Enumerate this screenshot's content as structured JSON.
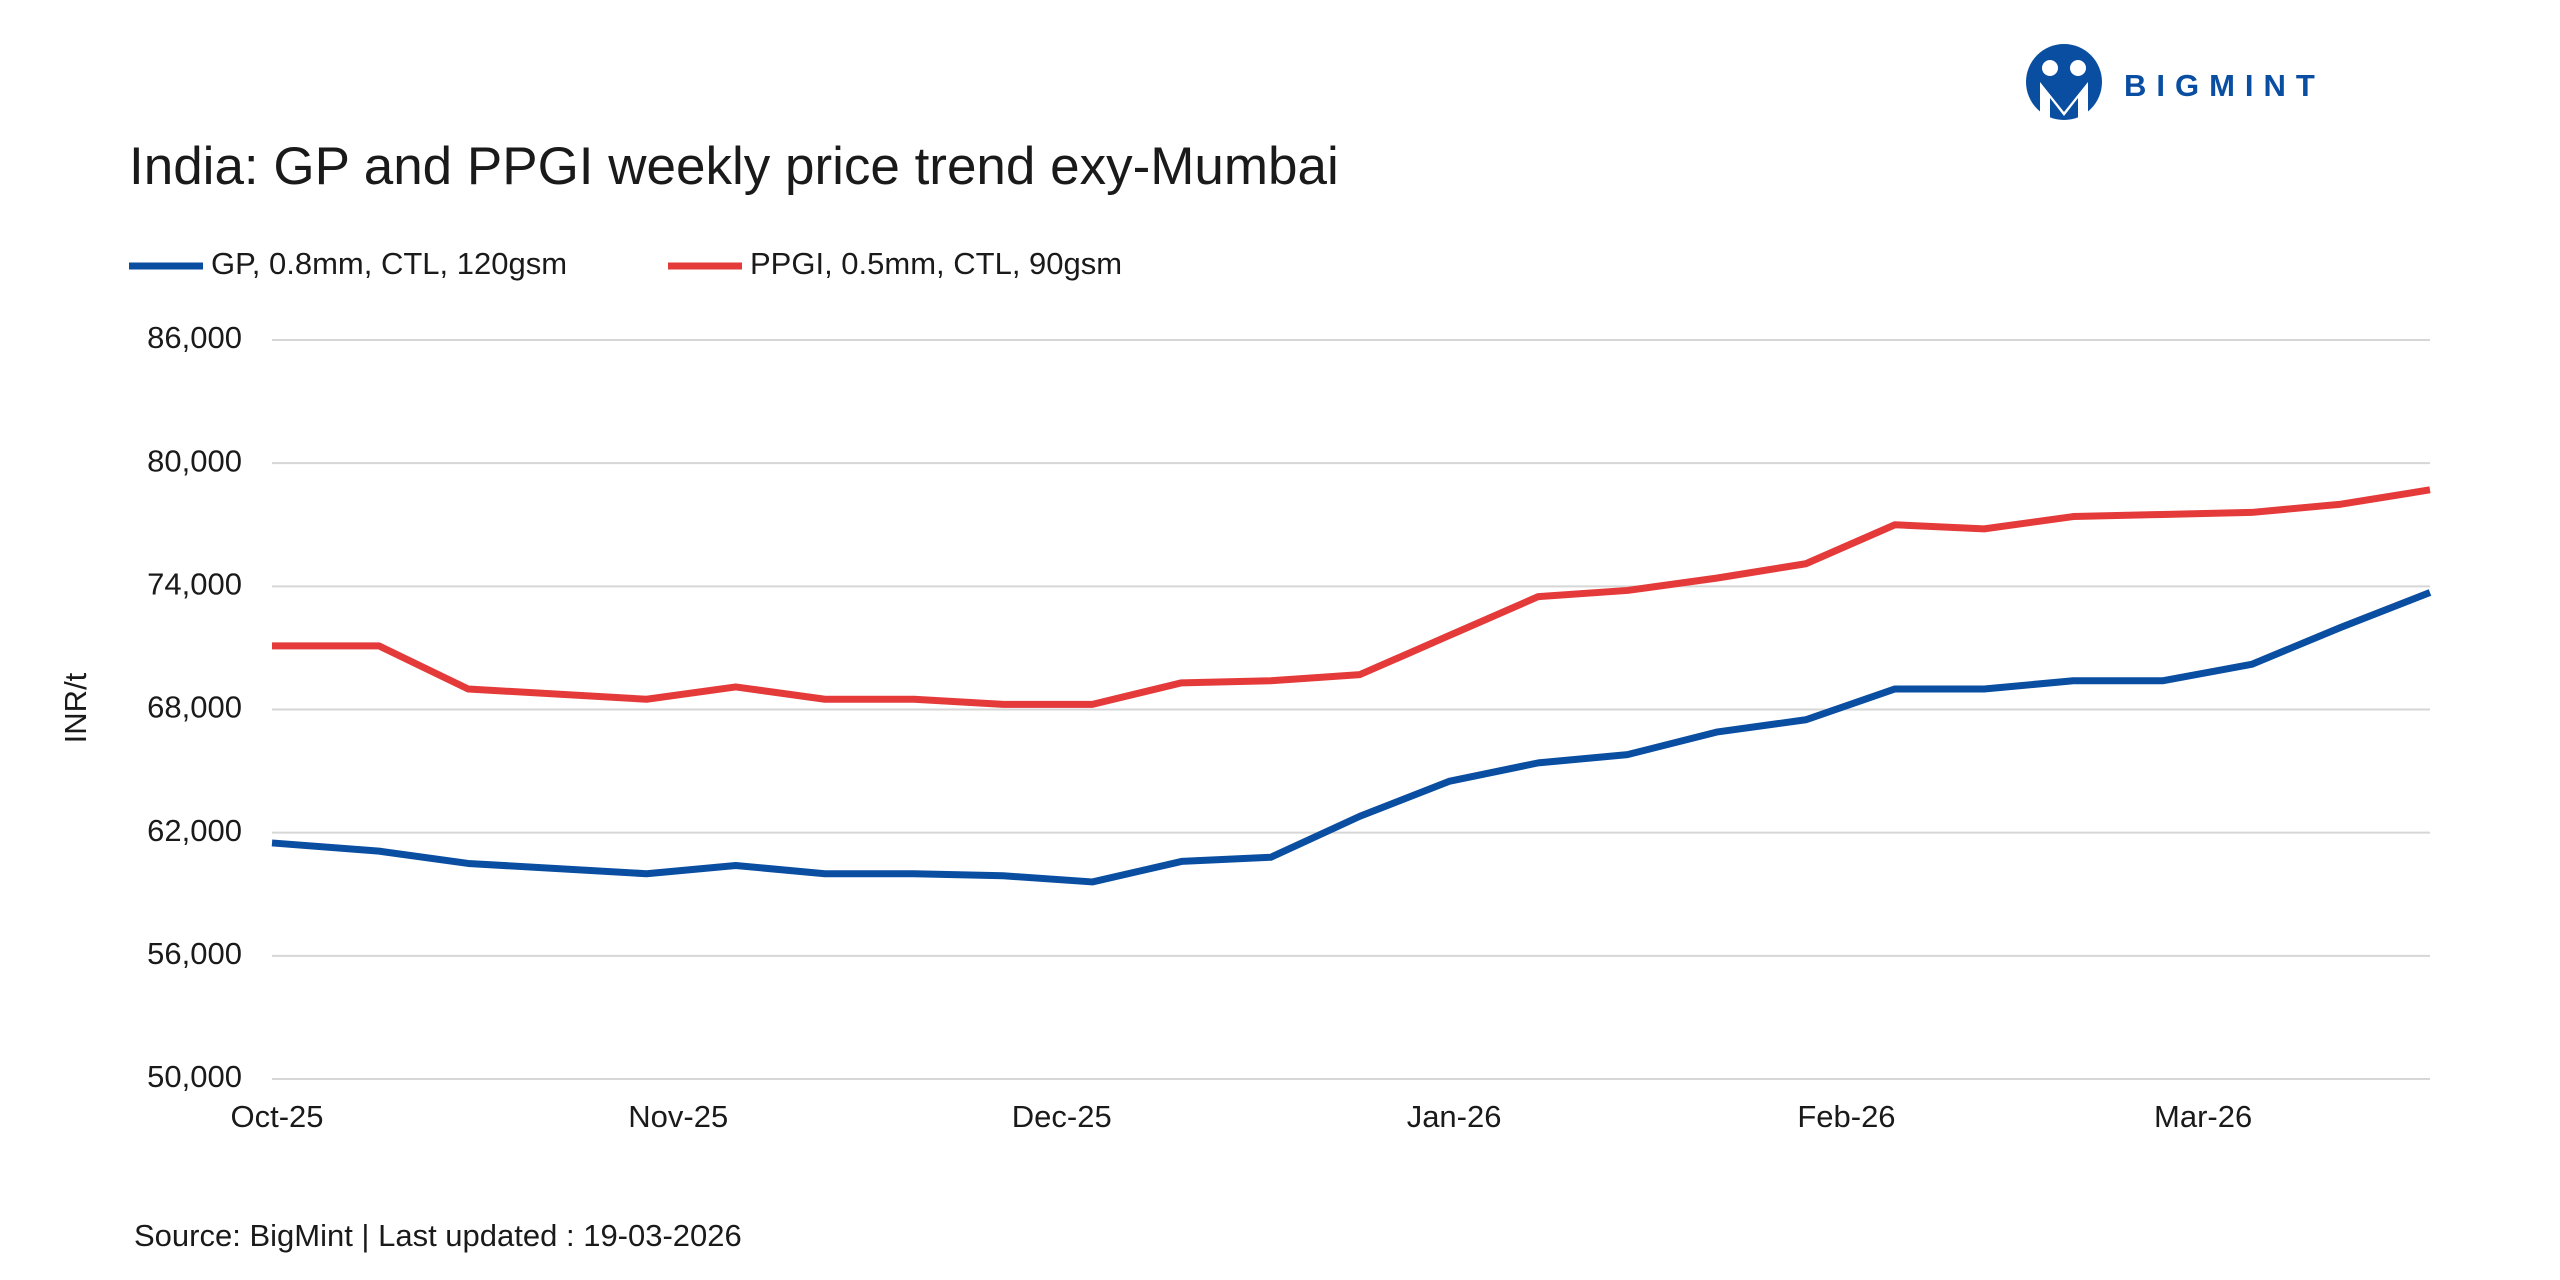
{
  "logo": "BIGMINT",
  "chart_data": {
    "type": "line",
    "title": "India: GP and PPGI weekly price trend exy-Mumbai",
    "y_label": "INR/t",
    "source": "Source: BigMint | Last updated : 19-03-2026",
    "x": [
      0,
      1.2,
      2.2,
      4.2,
      5.2,
      6.2,
      7.2,
      8.2,
      9.2,
      10.2,
      11.2,
      12.2,
      13.2,
      14.2,
      15.2,
      16.2,
      17.2,
      18.2,
      19.2,
      20.2,
      21.2,
      22.2,
      23.2,
      24.2
    ],
    "series": [
      {
        "name": "GP, 0.8mm, CTL, 120gsm",
        "color": "#0a4ea2",
        "values": [
          61500,
          61100,
          60500,
          60000,
          60400,
          60000,
          60000,
          59900,
          59600,
          60600,
          60800,
          62800,
          64500,
          65400,
          65800,
          66900,
          67500,
          69000,
          69000,
          69400,
          69400,
          70200,
          72000,
          73700
        ]
      },
      {
        "name": "PPGI, 0.5mm, CTL, 90gsm",
        "color": "#e53a3a",
        "values": [
          71100,
          71100,
          69000,
          68500,
          69100,
          68500,
          68500,
          68250,
          68250,
          69300,
          69400,
          69700,
          71600,
          73500,
          73800,
          74400,
          75100,
          77000,
          76800,
          77400,
          77500,
          77600,
          78000,
          78700
        ]
      }
    ],
    "xlim": [
      0,
      24.2
    ],
    "xticks": [
      {
        "value": 0,
        "label": "Oct-25"
      },
      {
        "value": 4.5,
        "label": "Nov-25"
      },
      {
        "value": 8.8,
        "label": "Dec-25"
      },
      {
        "value": 13.2,
        "label": "Jan-26"
      },
      {
        "value": 17.6,
        "label": "Feb-26"
      },
      {
        "value": 21.6,
        "label": "Mar-26"
      }
    ],
    "ylim": [
      50000,
      86000
    ],
    "yticks": [
      {
        "value": 50000,
        "label": "50,000"
      },
      {
        "value": 56000,
        "label": "56,000"
      },
      {
        "value": 62000,
        "label": "62,000"
      },
      {
        "value": 68000,
        "label": "68,000"
      },
      {
        "value": 74000,
        "label": "74,000"
      },
      {
        "value": 80000,
        "label": "80,000"
      },
      {
        "value": 86000,
        "label": "86,000"
      }
    ],
    "grid": true
  }
}
